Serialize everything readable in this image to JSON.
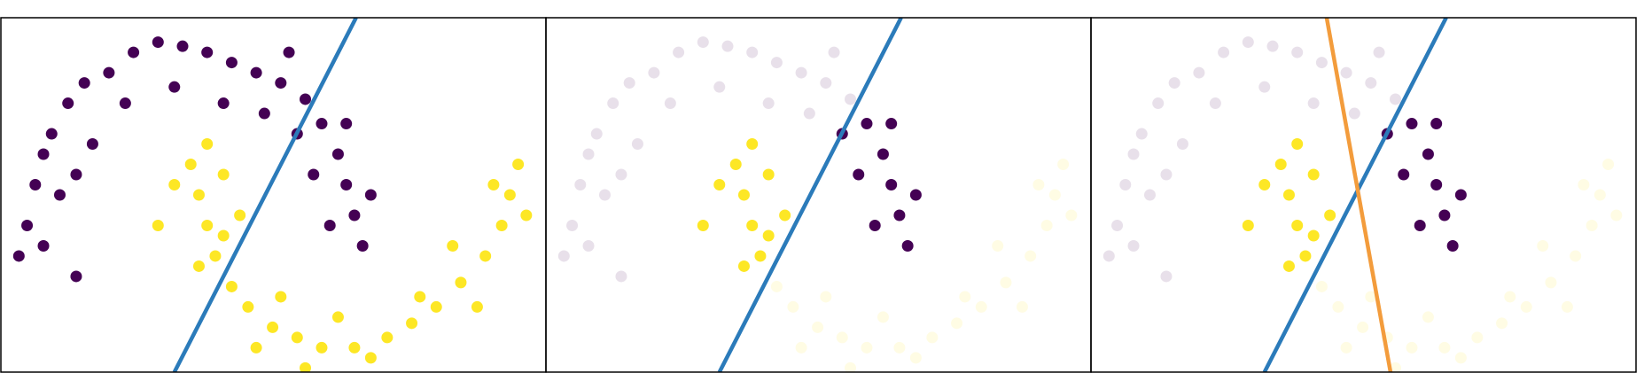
{
  "chart_data": [
    {
      "type": "scatter",
      "xlim": [
        -1.16,
        2.17
      ],
      "ylim": [
        -0.62,
        1.12
      ],
      "series": [
        {
          "color": "#440154",
          "opacity": 1,
          "x": [
            -1.0,
            -0.95,
            -0.9,
            -0.85,
            -0.75,
            -0.65,
            -0.5,
            -0.35,
            -0.2,
            -0.05,
            0.1,
            0.25,
            0.4,
            0.55,
            0.7,
            -1.05,
            -0.8,
            -0.6,
            -0.4,
            -0.1,
            0.2,
            0.45,
            -0.7,
            -0.9,
            -0.7,
            0.6
          ],
          "y": [
            0.1,
            0.3,
            0.45,
            0.55,
            0.7,
            0.8,
            0.85,
            0.95,
            1.0,
            0.98,
            0.95,
            0.9,
            0.85,
            0.8,
            0.72,
            -0.05,
            0.25,
            0.5,
            0.7,
            0.78,
            0.7,
            0.65,
            0.35,
            0.0,
            -0.15,
            0.95
          ]
        },
        {
          "color": "#440154",
          "opacity": 1,
          "x": [
            0.8,
            0.9,
            0.95,
            1.0,
            1.05,
            0.85,
            0.75,
            0.65,
            0.95,
            1.1
          ],
          "y": [
            0.6,
            0.45,
            0.3,
            0.15,
            0.0,
            0.1,
            0.35,
            0.55,
            0.6,
            0.25
          ]
        },
        {
          "color": "#fde725",
          "opacity": 1,
          "x": [
            0.0,
            0.05,
            0.1,
            0.15,
            -0.1,
            0.2,
            0.1,
            0.3,
            0.2,
            0.05,
            -0.2
          ],
          "y": [
            0.4,
            0.25,
            0.1,
            -0.05,
            0.3,
            0.35,
            0.5,
            0.15,
            0.05,
            -0.1,
            0.1
          ]
        },
        {
          "color": "#fde725",
          "opacity": 1,
          "x": [
            0.25,
            0.35,
            0.5,
            0.65,
            0.8,
            1.0,
            1.2,
            1.35,
            1.5,
            1.65,
            1.8,
            1.9,
            1.95,
            2.0,
            0.4,
            0.7,
            1.1,
            1.4,
            1.75,
            1.85,
            2.05,
            0.55,
            0.9,
            1.6
          ],
          "y": [
            -0.2,
            -0.3,
            -0.4,
            -0.45,
            -0.5,
            -0.5,
            -0.45,
            -0.38,
            -0.3,
            -0.18,
            -0.05,
            0.1,
            0.25,
            0.4,
            -0.5,
            -0.6,
            -0.55,
            -0.25,
            -0.3,
            0.3,
            0.15,
            -0.25,
            -0.35,
            0.0
          ]
        }
      ],
      "lines": [
        {
          "color": "#2b7bba",
          "x": [
            -0.1,
            1.01
          ],
          "y": [
            -0.62,
            1.12
          ]
        }
      ]
    },
    {
      "type": "scatter",
      "xlim": [
        -1.16,
        2.17
      ],
      "ylim": [
        -0.62,
        1.12
      ],
      "series": [
        {
          "color": "#440154",
          "opacity": 0.12,
          "x": [
            -1.0,
            -0.95,
            -0.9,
            -0.85,
            -0.75,
            -0.65,
            -0.5,
            -0.35,
            -0.2,
            -0.05,
            0.1,
            0.25,
            0.4,
            0.55,
            0.7,
            -1.05,
            -0.8,
            -0.6,
            -0.4,
            -0.1,
            0.2,
            0.45,
            -0.7,
            -0.9,
            -0.7,
            0.6
          ],
          "y": [
            0.1,
            0.3,
            0.45,
            0.55,
            0.7,
            0.8,
            0.85,
            0.95,
            1.0,
            0.98,
            0.95,
            0.9,
            0.85,
            0.8,
            0.72,
            -0.05,
            0.25,
            0.5,
            0.7,
            0.78,
            0.7,
            0.65,
            0.35,
            0.0,
            -0.15,
            0.95
          ]
        },
        {
          "color": "#440154",
          "opacity": 1,
          "x": [
            0.8,
            0.9,
            0.95,
            1.0,
            1.05,
            0.85,
            0.75,
            0.65,
            0.95,
            1.1
          ],
          "y": [
            0.6,
            0.45,
            0.3,
            0.15,
            0.0,
            0.1,
            0.35,
            0.55,
            0.6,
            0.25
          ]
        },
        {
          "color": "#fde725",
          "opacity": 1,
          "x": [
            0.0,
            0.05,
            0.1,
            0.15,
            -0.1,
            0.2,
            0.1,
            0.3,
            0.2,
            0.05,
            -0.2
          ],
          "y": [
            0.4,
            0.25,
            0.1,
            -0.05,
            0.3,
            0.35,
            0.5,
            0.15,
            0.05,
            -0.1,
            0.1
          ]
        },
        {
          "color": "#fde725",
          "opacity": 0.12,
          "x": [
            0.25,
            0.35,
            0.5,
            0.65,
            0.8,
            1.0,
            1.2,
            1.35,
            1.5,
            1.65,
            1.8,
            1.9,
            1.95,
            2.0,
            0.4,
            0.7,
            1.1,
            1.4,
            1.75,
            1.85,
            2.05,
            0.55,
            0.9,
            1.6
          ],
          "y": [
            -0.2,
            -0.3,
            -0.4,
            -0.45,
            -0.5,
            -0.5,
            -0.45,
            -0.38,
            -0.3,
            -0.18,
            -0.05,
            0.1,
            0.25,
            0.4,
            -0.5,
            -0.6,
            -0.55,
            -0.25,
            -0.3,
            0.3,
            0.15,
            -0.25,
            -0.35,
            0.0
          ]
        }
      ],
      "lines": [
        {
          "color": "#2b7bba",
          "x": [
            -0.1,
            1.01
          ],
          "y": [
            -0.62,
            1.12
          ]
        }
      ]
    },
    {
      "type": "scatter",
      "xlim": [
        -1.16,
        2.17
      ],
      "ylim": [
        -0.62,
        1.12
      ],
      "series": [
        {
          "color": "#440154",
          "opacity": 0.12,
          "x": [
            -1.0,
            -0.95,
            -0.9,
            -0.85,
            -0.75,
            -0.65,
            -0.5,
            -0.35,
            -0.2,
            -0.05,
            0.1,
            0.25,
            0.4,
            0.55,
            0.7,
            -1.05,
            -0.8,
            -0.6,
            -0.4,
            -0.1,
            0.2,
            0.45,
            -0.7,
            -0.9,
            -0.7,
            0.6
          ],
          "y": [
            0.1,
            0.3,
            0.45,
            0.55,
            0.7,
            0.8,
            0.85,
            0.95,
            1.0,
            0.98,
            0.95,
            0.9,
            0.85,
            0.8,
            0.72,
            -0.05,
            0.25,
            0.5,
            0.7,
            0.78,
            0.7,
            0.65,
            0.35,
            0.0,
            -0.15,
            0.95
          ]
        },
        {
          "color": "#440154",
          "opacity": 1,
          "x": [
            0.8,
            0.9,
            0.95,
            1.0,
            1.05,
            0.85,
            0.75,
            0.65,
            0.95,
            1.1
          ],
          "y": [
            0.6,
            0.45,
            0.3,
            0.15,
            0.0,
            0.1,
            0.35,
            0.55,
            0.6,
            0.25
          ]
        },
        {
          "color": "#fde725",
          "opacity": 1,
          "x": [
            0.0,
            0.05,
            0.1,
            0.15,
            -0.1,
            0.2,
            0.1,
            0.3,
            0.2,
            0.05,
            -0.2
          ],
          "y": [
            0.4,
            0.25,
            0.1,
            -0.05,
            0.3,
            0.35,
            0.5,
            0.15,
            0.05,
            -0.1,
            0.1
          ]
        },
        {
          "color": "#fde725",
          "opacity": 0.12,
          "x": [
            0.25,
            0.35,
            0.5,
            0.65,
            0.8,
            1.0,
            1.2,
            1.35,
            1.5,
            1.65,
            1.8,
            1.9,
            1.95,
            2.0,
            0.4,
            0.7,
            1.1,
            1.4,
            1.75,
            1.85,
            2.05,
            0.55,
            0.9,
            1.6
          ],
          "y": [
            -0.2,
            -0.3,
            -0.4,
            -0.45,
            -0.5,
            -0.5,
            -0.45,
            -0.38,
            -0.3,
            -0.18,
            -0.05,
            0.1,
            0.25,
            0.4,
            -0.5,
            -0.6,
            -0.55,
            -0.25,
            -0.3,
            0.3,
            0.15,
            -0.25,
            -0.35,
            0.0
          ]
        }
      ],
      "lines": [
        {
          "color": "#2b7bba",
          "x": [
            -0.1,
            1.01
          ],
          "y": [
            -0.62,
            1.12
          ]
        },
        {
          "color": "#f39c3c",
          "x": [
            0.28,
            0.67
          ],
          "y": [
            1.12,
            -0.62
          ]
        }
      ]
    }
  ]
}
